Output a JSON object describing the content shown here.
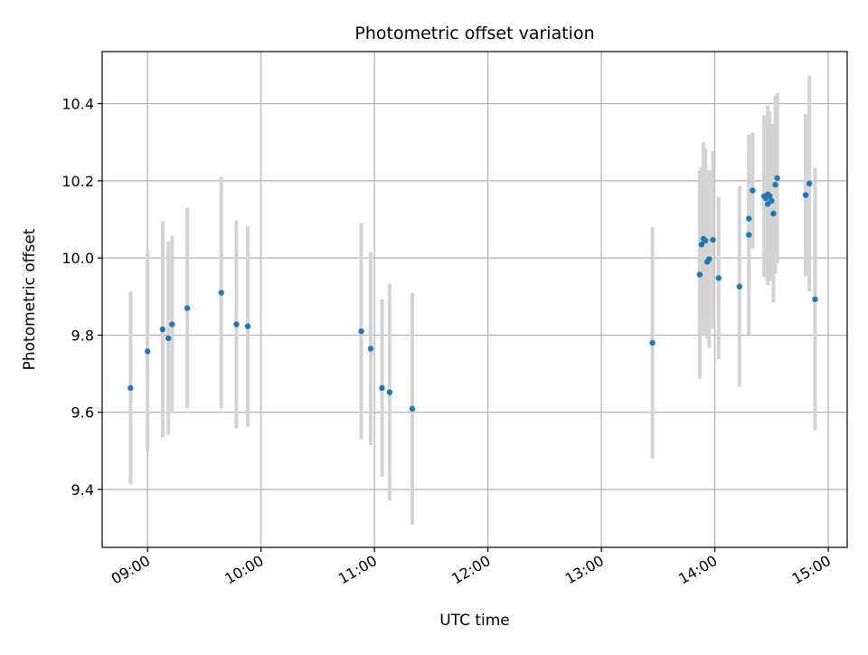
{
  "chart_data": {
    "type": "scatter",
    "title": "Photometric offset variation",
    "xlabel": "UTC time",
    "ylabel": "Photometric offset",
    "grid": true,
    "xlim": [
      "08:36",
      "15:10"
    ],
    "ylim": [
      9.25,
      10.535
    ],
    "xticks": [
      "09:00",
      "10:00",
      "11:00",
      "12:00",
      "13:00",
      "14:00",
      "15:00"
    ],
    "yticks": [
      "9.4",
      "9.6",
      "9.8",
      "10.0",
      "10.2",
      "10.4"
    ],
    "colors": {
      "marker": "#1f77b4",
      "errorbar": "#d3d3d3",
      "grid": "#b0b0b0"
    },
    "points": [
      {
        "x": "08:51",
        "y": 9.663,
        "yerr": 0.25
      },
      {
        "x": "09:00",
        "y": 9.758,
        "yerr": 0.26
      },
      {
        "x": "09:08",
        "y": 9.815,
        "yerr": 0.28
      },
      {
        "x": "09:11",
        "y": 9.792,
        "yerr": 0.25
      },
      {
        "x": "09:13",
        "y": 9.828,
        "yerr": 0.23
      },
      {
        "x": "09:21",
        "y": 9.87,
        "yerr": 0.26
      },
      {
        "x": "09:39",
        "y": 9.91,
        "yerr": 0.3
      },
      {
        "x": "09:47",
        "y": 9.828,
        "yerr": 0.27
      },
      {
        "x": "09:53",
        "y": 9.823,
        "yerr": 0.26
      },
      {
        "x": "10:53",
        "y": 9.81,
        "yerr": 0.28
      },
      {
        "x": "10:58",
        "y": 9.765,
        "yerr": 0.25
      },
      {
        "x": "11:04",
        "y": 9.663,
        "yerr": 0.23
      },
      {
        "x": "11:08",
        "y": 9.652,
        "yerr": 0.28
      },
      {
        "x": "11:20",
        "y": 9.609,
        "yerr": 0.3
      },
      {
        "x": "13:27",
        "y": 9.78,
        "yerr": 0.3
      },
      {
        "x": "13:52",
        "y": 9.957,
        "yerr": 0.27
      },
      {
        "x": "13:53",
        "y": 10.035,
        "yerr": 0.2
      },
      {
        "x": "13:54",
        "y": 10.05,
        "yerr": 0.25
      },
      {
        "x": "13:55",
        "y": 10.045,
        "yerr": 0.24
      },
      {
        "x": "13:56",
        "y": 9.99,
        "yerr": 0.2
      },
      {
        "x": "13:57",
        "y": 9.997,
        "yerr": 0.23
      },
      {
        "x": "13:59",
        "y": 10.047,
        "yerr": 0.23
      },
      {
        "x": "14:02",
        "y": 9.948,
        "yerr": 0.21
      },
      {
        "x": "14:13",
        "y": 9.926,
        "yerr": 0.26
      },
      {
        "x": "14:18",
        "y": 10.102,
        "yerr": 0.19
      },
      {
        "x": "14:18",
        "y": 10.06,
        "yerr": 0.26
      },
      {
        "x": "14:20",
        "y": 10.175,
        "yerr": 0.15
      },
      {
        "x": "14:26",
        "y": 10.16,
        "yerr": 0.21
      },
      {
        "x": "14:27",
        "y": 10.155,
        "yerr": 0.2
      },
      {
        "x": "14:28",
        "y": 10.14,
        "yerr": 0.21
      },
      {
        "x": "14:28",
        "y": 10.165,
        "yerr": 0.23
      },
      {
        "x": "14:29",
        "y": 10.16,
        "yerr": 0.22
      },
      {
        "x": "14:30",
        "y": 10.148,
        "yerr": 0.2
      },
      {
        "x": "14:31",
        "y": 10.115,
        "yerr": 0.23
      },
      {
        "x": "14:32",
        "y": 10.19,
        "yerr": 0.23
      },
      {
        "x": "14:33",
        "y": 10.207,
        "yerr": 0.22
      },
      {
        "x": "14:48",
        "y": 10.163,
        "yerr": 0.21
      },
      {
        "x": "14:50",
        "y": 10.193,
        "yerr": 0.28
      },
      {
        "x": "14:53",
        "y": 9.893,
        "yerr": 0.34
      }
    ]
  }
}
